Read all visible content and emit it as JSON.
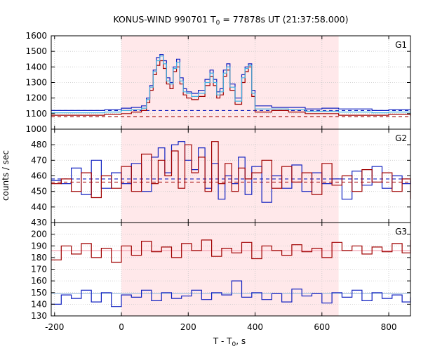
{
  "chart_data": {
    "type": "line",
    "title": "KONUS-WIND 990701 T",
    "title_sub": "0",
    "title_rest": " = 77878s UT (21:37:58.000)",
    "xlabel": "T - T",
    "xlabel_sub": "0",
    "xlabel_rest": ", s",
    "ylabel": "counts / sec",
    "xlim": [
      -210,
      865
    ],
    "xticks": [
      -200,
      0,
      200,
      400,
      600,
      800
    ],
    "shaded_interval": [
      0,
      650
    ],
    "colors": {
      "red": "#a00000",
      "blue": "#1020c0",
      "cyan": "#40b0e0",
      "pink": "#f0a0b0",
      "background_line": "#a0c0e0"
    },
    "panels": [
      {
        "label": "G1",
        "ylim": [
          1000,
          1600
        ],
        "yticks": [
          1000,
          1100,
          1200,
          1300,
          1400,
          1500,
          1600
        ],
        "background_red": 1080,
        "background_blue": 1120,
        "series": [
          {
            "color": "blue",
            "x": [
              -210,
              -100,
              -50,
              0,
              30,
              60,
              75,
              85,
              95,
              105,
              115,
              125,
              135,
              145,
              155,
              165,
              175,
              185,
              195,
              210,
              230,
              250,
              265,
              275,
              285,
              295,
              305,
              315,
              325,
              340,
              360,
              370,
              380,
              390,
              400,
              450,
              500,
              550,
              600,
              650,
              700,
              750,
              800,
              865
            ],
            "values": [
              1120,
              1120,
              1125,
              1135,
              1140,
              1150,
              1200,
              1280,
              1380,
              1460,
              1480,
              1440,
              1330,
              1300,
              1400,
              1450,
              1330,
              1260,
              1240,
              1230,
              1250,
              1320,
              1380,
              1320,
              1240,
              1260,
              1380,
              1420,
              1290,
              1200,
              1350,
              1400,
              1420,
              1250,
              1150,
              1140,
              1140,
              1130,
              1135,
              1130,
              1130,
              1120,
              1125,
              1120
            ]
          },
          {
            "color": "red",
            "x": [
              -210,
              -100,
              -50,
              0,
              30,
              60,
              75,
              85,
              95,
              105,
              115,
              125,
              135,
              145,
              155,
              165,
              175,
              185,
              195,
              210,
              230,
              250,
              265,
              275,
              285,
              295,
              305,
              315,
              325,
              340,
              360,
              370,
              380,
              390,
              400,
              450,
              500,
              550,
              600,
              650,
              700,
              750,
              800,
              865
            ],
            "values": [
              1090,
              1090,
              1095,
              1100,
              1110,
              1120,
              1170,
              1250,
              1350,
              1410,
              1440,
              1390,
              1290,
              1260,
              1370,
              1400,
              1290,
              1220,
              1200,
              1190,
              1210,
              1280,
              1340,
              1280,
              1200,
              1220,
              1340,
              1380,
              1250,
              1160,
              1300,
              1370,
              1400,
              1210,
              1110,
              1120,
              1110,
              1100,
              1100,
              1090,
              1090,
              1090,
              1095,
              1085
            ]
          },
          {
            "color": "cyan",
            "x": [
              -210,
              -100,
              -50,
              0,
              30,
              60,
              75,
              85,
              95,
              105,
              115,
              125,
              135,
              145,
              155,
              165,
              175,
              185,
              195,
              210,
              230,
              250,
              265,
              275,
              285,
              295,
              305,
              315,
              325,
              340,
              360,
              370,
              380,
              390,
              400,
              450,
              500,
              550,
              600,
              650,
              700,
              750,
              800,
              865
            ],
            "values": [
              1105,
              1105,
              1110,
              1120,
              1125,
              1135,
              1190,
              1270,
              1370,
              1440,
              1470,
              1420,
              1310,
              1290,
              1390,
              1430,
              1310,
              1240,
              1230,
              1210,
              1230,
              1300,
              1360,
              1300,
              1220,
              1240,
              1360,
              1400,
              1270,
              1180,
              1330,
              1390,
              1410,
              1230,
              1130,
              1130,
              1125,
              1115,
              1115,
              1110,
              1110,
              1105,
              1110,
              1100
            ]
          }
        ]
      },
      {
        "label": "G2",
        "ylim": [
          430,
          490
        ],
        "yticks": [
          430,
          440,
          450,
          460,
          470,
          480
        ],
        "background_red": 456,
        "background_blue": 458,
        "series": [
          {
            "color": "blue",
            "x": [
              -210,
              -180,
              -150,
              -120,
              -90,
              -60,
              -30,
              0,
              30,
              60,
              90,
              110,
              130,
              150,
              170,
              190,
              210,
              230,
              250,
              270,
              290,
              310,
              330,
              350,
              370,
              390,
              420,
              450,
              480,
              510,
              540,
              570,
              600,
              630,
              660,
              690,
              720,
              750,
              780,
              810,
              840,
              865
            ],
            "values": [
              457,
              455,
              465,
              448,
              470,
              452,
              462,
              455,
              468,
              450,
              472,
              478,
              462,
              480,
              482,
              470,
              464,
              478,
              452,
              468,
              445,
              460,
              455,
              472,
              448,
              466,
              443,
              460,
              452,
              467,
              450,
              462,
              455,
              458,
              445,
              463,
              454,
              466,
              452,
              460,
              455,
              457
            ]
          },
          {
            "color": "red",
            "x": [
              -210,
              -180,
              -150,
              -120,
              -90,
              -60,
              -30,
              0,
              30,
              60,
              90,
              110,
              130,
              150,
              170,
              190,
              210,
              230,
              250,
              270,
              290,
              310,
              330,
              350,
              370,
              390,
              420,
              450,
              480,
              510,
              540,
              570,
              600,
              630,
              660,
              690,
              720,
              750,
              780,
              810,
              840,
              865
            ],
            "values": [
              455,
              458,
              450,
              462,
              446,
              460,
              452,
              466,
              450,
              474,
              455,
              470,
              460,
              476,
              452,
              480,
              462,
              472,
              450,
              482,
              455,
              468,
              450,
              465,
              458,
              462,
              470,
              452,
              466,
              456,
              462,
              448,
              468,
              454,
              460,
              450,
              464,
              456,
              462,
              450,
              458,
              445
            ]
          }
        ]
      },
      {
        "label": "G3",
        "ylim": [
          130,
          210
        ],
        "yticks": [
          130,
          140,
          150,
          160,
          170,
          180,
          190,
          200
        ],
        "background_red": 186,
        "background_blue": 149,
        "series": [
          {
            "color": "red",
            "x": [
              -210,
              -180,
              -150,
              -120,
              -90,
              -60,
              -30,
              0,
              30,
              60,
              90,
              120,
              150,
              180,
              210,
              240,
              270,
              300,
              330,
              360,
              390,
              420,
              450,
              480,
              510,
              540,
              570,
              600,
              630,
              660,
              690,
              720,
              750,
              780,
              810,
              840,
              865
            ],
            "values": [
              178,
              190,
              183,
              192,
              180,
              188,
              176,
              190,
              182,
              194,
              185,
              189,
              180,
              192,
              186,
              195,
              181,
              188,
              184,
              193,
              179,
              190,
              186,
              182,
              191,
              185,
              188,
              180,
              193,
              186,
              190,
              183,
              189,
              185,
              192,
              184,
              195
            ]
          },
          {
            "color": "blue",
            "x": [
              -210,
              -180,
              -150,
              -120,
              -90,
              -60,
              -30,
              0,
              30,
              60,
              90,
              120,
              150,
              180,
              210,
              240,
              270,
              300,
              330,
              360,
              390,
              420,
              450,
              480,
              510,
              540,
              570,
              600,
              630,
              660,
              690,
              720,
              750,
              780,
              810,
              840,
              865
            ],
            "values": [
              140,
              148,
              145,
              152,
              142,
              150,
              138,
              148,
              146,
              152,
              143,
              150,
              145,
              147,
              152,
              144,
              150,
              148,
              160,
              146,
              150,
              144,
              149,
              142,
              153,
              147,
              149,
              141,
              150,
              146,
              152,
              143,
              150,
              145,
              148,
              142,
              146
            ]
          }
        ]
      }
    ]
  }
}
